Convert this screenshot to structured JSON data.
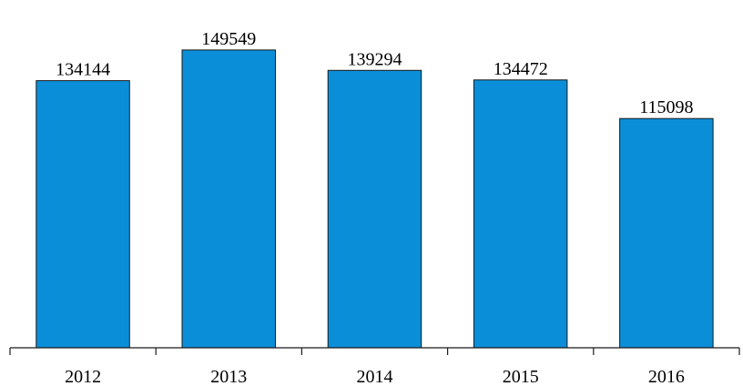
{
  "chart_data": {
    "type": "bar",
    "title": "",
    "xlabel": "",
    "ylabel": "",
    "categories": [
      "2012",
      "2013",
      "2014",
      "2015",
      "2016"
    ],
    "values": [
      134144,
      149549,
      139294,
      134472,
      115098
    ],
    "data_labels": [
      "134144",
      "149549",
      "139294",
      "134472",
      "115098"
    ],
    "ylim": [
      0,
      160000
    ],
    "grid": false,
    "legend": "none",
    "bar_color": "#0b8ed8",
    "bar_edge_color": "#1a1a1a"
  }
}
